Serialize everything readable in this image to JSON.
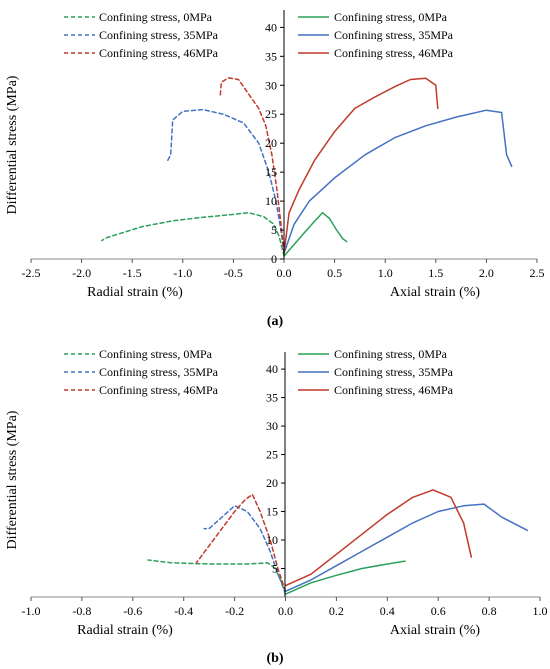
{
  "colors": {
    "green": "#2ca05a",
    "blue": "#4472c4",
    "red": "#c0392b"
  },
  "chart_data": [
    {
      "id": "a",
      "type": "line",
      "caption": "(a)",
      "ylabel": "Differential stress (MPa)",
      "left_xlabel": "Radial strain (%)",
      "right_xlabel": "Axial strain (%)",
      "xlim": [
        -2.5,
        2.5
      ],
      "ylim": [
        0,
        43
      ],
      "xticks": [
        "-2.5",
        "-2.0",
        "-1.5",
        "-1.0",
        "-0.5",
        "0.0",
        "0.5",
        "1.0",
        "1.5",
        "2.0",
        "2.5"
      ],
      "xtick_values": [
        -2.5,
        -2.0,
        -1.5,
        -1.0,
        -0.5,
        0.0,
        0.5,
        1.0,
        1.5,
        2.0,
        2.5
      ],
      "yticks": [
        "0",
        "5",
        "10",
        "15",
        "20",
        "25",
        "30",
        "35",
        "40"
      ],
      "ytick_values": [
        0,
        5,
        10,
        15,
        20,
        25,
        30,
        35,
        40
      ],
      "legend_left": [
        "Confining stress, 0MPa",
        "Confining stress, 35MPa",
        "Confining stress, 46MPa"
      ],
      "legend_right": [
        "Confining stress, 0MPa",
        "Confining stress, 35MPa",
        "Confining stress, 46MPa"
      ],
      "series": [
        {
          "name": "Confining stress, 0MPa",
          "side": "radial",
          "color": "green",
          "points": [
            [
              0,
              0.5
            ],
            [
              -0.02,
              2
            ],
            [
              -0.05,
              4
            ],
            [
              -0.1,
              6
            ],
            [
              -0.2,
              7.3
            ],
            [
              -0.35,
              8
            ],
            [
              -0.5,
              7.7
            ],
            [
              -0.8,
              7.2
            ],
            [
              -1.1,
              6.6
            ],
            [
              -1.4,
              5.6
            ],
            [
              -1.6,
              4.5
            ],
            [
              -1.75,
              3.7
            ],
            [
              -1.8,
              3.2
            ]
          ]
        },
        {
          "name": "Confining stress, 35MPa",
          "side": "radial",
          "color": "blue",
          "points": [
            [
              0,
              1
            ],
            [
              -0.03,
              5
            ],
            [
              -0.08,
              10
            ],
            [
              -0.15,
              15
            ],
            [
              -0.25,
              20
            ],
            [
              -0.4,
              23.5
            ],
            [
              -0.6,
              25
            ],
            [
              -0.8,
              25.8
            ],
            [
              -1.0,
              25.5
            ],
            [
              -1.1,
              24
            ],
            [
              -1.12,
              18
            ],
            [
              -1.15,
              17
            ]
          ]
        },
        {
          "name": "Confining stress, 46MPa",
          "side": "radial",
          "color": "red",
          "points": [
            [
              0,
              1
            ],
            [
              -0.03,
              6
            ],
            [
              -0.07,
              12
            ],
            [
              -0.12,
              18
            ],
            [
              -0.18,
              23
            ],
            [
              -0.25,
              26
            ],
            [
              -0.35,
              28.5
            ],
            [
              -0.45,
              31
            ],
            [
              -0.55,
              31.3
            ],
            [
              -0.62,
              30.5
            ],
            [
              -0.63,
              28
            ]
          ]
        },
        {
          "name": "Confining stress, 0MPa",
          "side": "axial",
          "color": "green",
          "points": [
            [
              0,
              0.5
            ],
            [
              0.1,
              2.5
            ],
            [
              0.2,
              4.5
            ],
            [
              0.3,
              6.5
            ],
            [
              0.38,
              8
            ],
            [
              0.45,
              7
            ],
            [
              0.52,
              5
            ],
            [
              0.58,
              3.5
            ],
            [
              0.62,
              3
            ]
          ]
        },
        {
          "name": "Confining stress, 35MPa",
          "side": "axial",
          "color": "blue",
          "points": [
            [
              0,
              1
            ],
            [
              0.1,
              6
            ],
            [
              0.25,
              10
            ],
            [
              0.5,
              14
            ],
            [
              0.8,
              18
            ],
            [
              1.1,
              21
            ],
            [
              1.4,
              23
            ],
            [
              1.7,
              24.5
            ],
            [
              2.0,
              25.7
            ],
            [
              2.15,
              25.3
            ],
            [
              2.2,
              18
            ],
            [
              2.25,
              16
            ]
          ]
        },
        {
          "name": "Confining stress, 46MPa",
          "side": "axial",
          "color": "red",
          "points": [
            [
              0,
              1
            ],
            [
              0.05,
              8
            ],
            [
              0.15,
              12
            ],
            [
              0.3,
              17
            ],
            [
              0.5,
              22
            ],
            [
              0.7,
              26
            ],
            [
              0.9,
              28
            ],
            [
              1.1,
              29.8
            ],
            [
              1.25,
              31
            ],
            [
              1.4,
              31.2
            ],
            [
              1.5,
              30
            ],
            [
              1.52,
              26
            ]
          ]
        }
      ]
    },
    {
      "id": "b",
      "type": "line",
      "caption": "(b)",
      "ylabel": "Differential stress (MPa)",
      "left_xlabel": "Radial strain (%)",
      "right_xlabel": "Axial strain (%)",
      "xlim": [
        -1.0,
        1.0
      ],
      "ylim": [
        0,
        43
      ],
      "xticks": [
        "-1.0",
        "-0.8",
        "-0.6",
        "-0.4",
        "-0.2",
        "0.0",
        "0.2",
        "0.4",
        "0.6",
        "0.8",
        "1.0"
      ],
      "xtick_values": [
        -1.0,
        -0.8,
        -0.6,
        -0.4,
        -0.2,
        0.0,
        0.2,
        0.4,
        0.6,
        0.8,
        1.0
      ],
      "yticks": [
        "5",
        "10",
        "15",
        "20",
        "25",
        "30",
        "35",
        "40"
      ],
      "ytick_values": [
        5,
        10,
        15,
        20,
        25,
        30,
        35,
        40
      ],
      "legend_left": [
        "Confining stress, 0MPa",
        "Confining stress, 35MPa",
        "Confining stress, 46MPa"
      ],
      "legend_right": [
        "Confining stress, 0MPa",
        "Confining stress, 35MPa",
        "Confining stress, 46MPa"
      ],
      "series": [
        {
          "name": "Confining stress, 0MPa",
          "side": "radial",
          "color": "green",
          "points": [
            [
              0,
              0.5
            ],
            [
              -0.02,
              3
            ],
            [
              -0.04,
              5
            ],
            [
              -0.07,
              6
            ],
            [
              -0.15,
              5.8
            ],
            [
              -0.3,
              5.8
            ],
            [
              -0.45,
              6
            ],
            [
              -0.54,
              6.5
            ]
          ]
        },
        {
          "name": "Confining stress, 35MPa",
          "side": "radial",
          "color": "blue",
          "points": [
            [
              0,
              1
            ],
            [
              -0.03,
              4
            ],
            [
              -0.06,
              8
            ],
            [
              -0.1,
              12
            ],
            [
              -0.15,
              15
            ],
            [
              -0.2,
              16
            ],
            [
              -0.25,
              14
            ],
            [
              -0.3,
              12
            ],
            [
              -0.32,
              12
            ]
          ]
        },
        {
          "name": "Confining stress, 46MPa",
          "side": "radial",
          "color": "red",
          "points": [
            [
              0,
              1
            ],
            [
              -0.03,
              5
            ],
            [
              -0.06,
              10
            ],
            [
              -0.1,
              15
            ],
            [
              -0.13,
              18
            ],
            [
              -0.16,
              17
            ],
            [
              -0.2,
              15
            ],
            [
              -0.25,
              12
            ],
            [
              -0.3,
              9
            ],
            [
              -0.35,
              6
            ]
          ]
        },
        {
          "name": "Confining stress, 0MPa",
          "side": "axial",
          "color": "green",
          "points": [
            [
              0,
              0.5
            ],
            [
              0.1,
              2.5
            ],
            [
              0.2,
              3.8
            ],
            [
              0.3,
              5
            ],
            [
              0.4,
              5.8
            ],
            [
              0.47,
              6.3
            ]
          ]
        },
        {
          "name": "Confining stress, 35MPa",
          "side": "axial",
          "color": "blue",
          "points": [
            [
              0,
              1
            ],
            [
              0.1,
              3
            ],
            [
              0.2,
              5.5
            ],
            [
              0.3,
              8
            ],
            [
              0.4,
              10.5
            ],
            [
              0.5,
              13
            ],
            [
              0.6,
              15
            ],
            [
              0.7,
              16
            ],
            [
              0.78,
              16.3
            ],
            [
              0.85,
              14
            ],
            [
              0.95,
              11.7
            ]
          ]
        },
        {
          "name": "Confining stress, 46MPa",
          "side": "axial",
          "color": "red",
          "points": [
            [
              0,
              2
            ],
            [
              0.1,
              4
            ],
            [
              0.2,
              7.5
            ],
            [
              0.3,
              11
            ],
            [
              0.4,
              14.5
            ],
            [
              0.5,
              17.5
            ],
            [
              0.58,
              18.8
            ],
            [
              0.65,
              17.5
            ],
            [
              0.7,
              13
            ],
            [
              0.73,
              7
            ]
          ]
        }
      ]
    }
  ]
}
